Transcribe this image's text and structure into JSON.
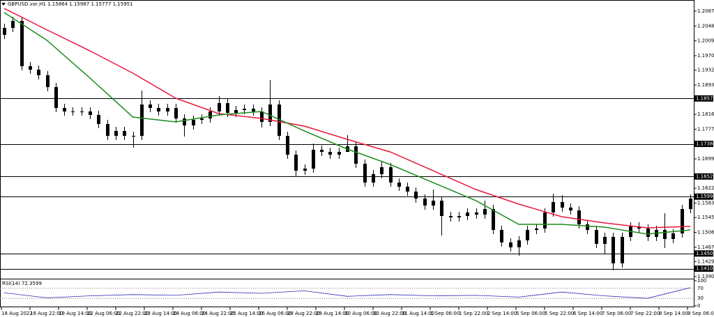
{
  "chart_data": {
    "type": "candlestick",
    "title": "GBPUSD.var,H1 1.15864 1.15987 1.15777 1.15951",
    "ylim": [
      1.13843,
      1.21163
    ],
    "yticks": [
      {
        "value": 1.2087,
        "label": "1.20870"
      },
      {
        "value": 1.2048,
        "label": "1.20480"
      },
      {
        "value": 1.2009,
        "label": "1.20090"
      },
      {
        "value": 1.197,
        "label": "1.19700"
      },
      {
        "value": 1.1932,
        "label": "1.19320"
      },
      {
        "value": 1.1893,
        "label": "1.18930"
      },
      {
        "value": 1.1816,
        "label": "1.18160"
      },
      {
        "value": 1.1777,
        "label": "1.17770"
      },
      {
        "value": 1.1699,
        "label": "1.16990"
      },
      {
        "value": 1.1622,
        "label": "1.16220"
      },
      {
        "value": 1.1583,
        "label": "1.15830"
      },
      {
        "value": 1.1545,
        "label": "1.15450"
      },
      {
        "value": 1.1506,
        "label": "1.15060"
      },
      {
        "value": 1.1467,
        "label": "1.14670"
      },
      {
        "value": 1.1429,
        "label": "1.14290"
      },
      {
        "value": 1.139,
        "label": "1.13900"
      }
    ],
    "categories": [
      "18 Aug 2022",
      "18 Aug 22:00",
      "19 Aug 14:00",
      "22 Aug 06:00",
      "22 Aug 22:00",
      "23 Aug 14:00",
      "24 Aug 06:00",
      "24 Aug 22:00",
      "25 Aug 14:00",
      "26 Aug 06:00",
      "28 Aug 22:00",
      "29 Aug 14:00",
      "30 Aug 06:00",
      "30 Aug 22:00",
      "31 Aug 14:00",
      "1 Sep 06:00",
      "1 Sep 22:00",
      "2 Sep 14:00",
      "5 Sep 06:00",
      "5 Sep 22:00",
      "6 Sep 14:00",
      "7 Sep 06:00",
      "7 Sep 22:00",
      "8 Sep 14:00",
      "9 Sep 06:00"
    ],
    "candles": [
      [
        1.20248,
        1.20541,
        1.20138,
        1.20431
      ],
      [
        1.20431,
        1.20724,
        1.20321,
        1.20614
      ],
      [
        1.20614,
        1.20724,
        1.19315,
        1.19424
      ],
      [
        1.19424,
        1.19534,
        1.19223,
        1.19333
      ],
      [
        1.19333,
        1.19443,
        1.19077,
        1.19187
      ],
      [
        1.19187,
        1.19296,
        1.18766,
        1.18876
      ],
      [
        1.18876,
        1.18985,
        1.18217,
        1.18327
      ],
      [
        1.18327,
        1.18436,
        1.18125,
        1.18235
      ],
      [
        1.18235,
        1.18345,
        1.18125,
        1.18235
      ],
      [
        1.18235,
        1.18345,
        1.18125,
        1.18235
      ],
      [
        1.18235,
        1.18345,
        1.18034,
        1.18144
      ],
      [
        1.18144,
        1.18253,
        1.17796,
        1.17906
      ],
      [
        1.17906,
        1.18015,
        1.17485,
        1.17595
      ],
      [
        1.17595,
        1.17832,
        1.17485,
        1.17723
      ],
      [
        1.17723,
        1.17832,
        1.17485,
        1.17595
      ],
      [
        1.17595,
        1.17704,
        1.17283,
        1.17595
      ],
      [
        1.17595,
        1.18784,
        1.17485,
        1.18418
      ],
      [
        1.18418,
        1.18528,
        1.18217,
        1.18327
      ],
      [
        1.18327,
        1.18436,
        1.18125,
        1.18235
      ],
      [
        1.18235,
        1.18436,
        1.18125,
        1.18327
      ],
      [
        1.18327,
        1.18436,
        1.17942,
        1.18052
      ],
      [
        1.18052,
        1.18162,
        1.17576,
        1.17869
      ],
      [
        1.17869,
        1.18125,
        1.17759,
        1.18015
      ],
      [
        1.18015,
        1.18162,
        1.17906,
        1.18052
      ],
      [
        1.18052,
        1.18345,
        1.17942,
        1.18235
      ],
      [
        1.18235,
        1.18638,
        1.18125,
        1.18455
      ],
      [
        1.18455,
        1.18564,
        1.18089,
        1.18198
      ],
      [
        1.18198,
        1.18381,
        1.18089,
        1.18272
      ],
      [
        1.18272,
        1.18418,
        1.18162,
        1.18308
      ],
      [
        1.18308,
        1.18418,
        1.18125,
        1.18235
      ],
      [
        1.18235,
        1.18345,
        1.17814,
        1.17961
      ],
      [
        1.17961,
        1.19059,
        1.17851,
        1.18418
      ],
      [
        1.18418,
        1.18528,
        1.17485,
        1.17595
      ],
      [
        1.17595,
        1.17704,
        1.16991,
        1.171
      ],
      [
        1.171,
        1.1721,
        1.16533,
        1.1668
      ],
      [
        1.1668,
        1.16844,
        1.1657,
        1.16734
      ],
      [
        1.16734,
        1.17393,
        1.16625,
        1.17229
      ],
      [
        1.17229,
        1.17338,
        1.17064,
        1.17174
      ],
      [
        1.17174,
        1.17283,
        1.16991,
        1.171
      ],
      [
        1.171,
        1.17283,
        1.16991,
        1.17174
      ],
      [
        1.17174,
        1.17613,
        1.1721,
        1.1732
      ],
      [
        1.1732,
        1.1743,
        1.16753,
        1.16863
      ],
      [
        1.16863,
        1.16972,
        1.16259,
        1.16368
      ],
      [
        1.16368,
        1.16698,
        1.16259,
        1.16588
      ],
      [
        1.16588,
        1.16917,
        1.16478,
        1.16771
      ],
      [
        1.16771,
        1.16881,
        1.16259,
        1.16368
      ],
      [
        1.16368,
        1.16478,
        1.16149,
        1.16259
      ],
      [
        1.16259,
        1.16368,
        1.16021,
        1.16131
      ],
      [
        1.16131,
        1.1624,
        1.15838,
        1.15948
      ],
      [
        1.15948,
        1.16057,
        1.15655,
        1.15765
      ],
      [
        1.15765,
        1.16185,
        1.15655,
        1.15893
      ],
      [
        1.15893,
        1.15998,
        1.14978,
        1.1549
      ],
      [
        1.1549,
        1.156,
        1.15344,
        1.15453
      ],
      [
        1.15453,
        1.156,
        1.15344,
        1.1549
      ],
      [
        1.1549,
        1.15691,
        1.1538,
        1.15582
      ],
      [
        1.15582,
        1.15691,
        1.15417,
        1.15527
      ],
      [
        1.15527,
        1.15893,
        1.15417,
        1.15673
      ],
      [
        1.15673,
        1.15783,
        1.15014,
        1.15124
      ],
      [
        1.15124,
        1.15234,
        1.14685,
        1.14795
      ],
      [
        1.14795,
        1.14904,
        1.14557,
        1.14667
      ],
      [
        1.14667,
        1.14959,
        1.14447,
        1.1485
      ],
      [
        1.1485,
        1.15234,
        1.1474,
        1.15124
      ],
      [
        1.15124,
        1.1527,
        1.15014,
        1.15161
      ],
      [
        1.15161,
        1.15691,
        1.15051,
        1.15582
      ],
      [
        1.15582,
        1.16076,
        1.15472,
        1.15856
      ],
      [
        1.15856,
        1.16039,
        1.156,
        1.1571
      ],
      [
        1.1571,
        1.15819,
        1.15527,
        1.15636
      ],
      [
        1.15636,
        1.15746,
        1.15161,
        1.1527
      ],
      [
        1.1527,
        1.1538,
        1.15014,
        1.15124
      ],
      [
        1.15124,
        1.15234,
        1.14648,
        1.14758
      ],
      [
        1.14758,
        1.15051,
        1.14502,
        1.14941
      ],
      [
        1.14941,
        1.15051,
        1.14063,
        1.14246
      ],
      [
        1.14246,
        1.15051,
        1.14136,
        1.14941
      ],
      [
        1.14941,
        1.15325,
        1.14831,
        1.15216
      ],
      [
        1.15216,
        1.15325,
        1.15051,
        1.15161
      ],
      [
        1.15161,
        1.1527,
        1.14831,
        1.14941
      ],
      [
        1.14941,
        1.15234,
        1.14831,
        1.15124
      ],
      [
        1.15124,
        1.15563,
        1.14648,
        1.14886
      ],
      [
        1.14886,
        1.15142,
        1.14776,
        1.15033
      ],
      [
        1.15033,
        1.15783,
        1.14923,
        1.15673
      ],
      [
        1.15673,
        1.16057,
        1.15563,
        1.15948
      ]
    ],
    "candle_color": "#000000",
    "x": [
      0,
      5,
      10,
      15,
      20,
      25,
      30,
      35,
      40,
      45,
      50,
      55,
      60,
      65,
      70,
      75,
      80
    ],
    "series": [
      {
        "color": "#e8173b",
        "values": [
          1.20943,
          1.20376,
          1.19827,
          1.19242,
          1.18583,
          1.1818,
          1.18052,
          1.17851,
          1.17503,
          1.17174,
          1.1668,
          1.16185,
          1.15801,
          1.15472,
          1.15307,
          1.15179,
          1.15216
        ]
      },
      {
        "color": "#1a8c1a",
        "values": [
          1.20834,
          1.20102,
          1.19113,
          1.18089,
          1.17961,
          1.18144,
          1.18235,
          1.17723,
          1.17247,
          1.16844,
          1.16368,
          1.15893,
          1.1527,
          1.1527,
          1.15197,
          1.15014,
          1.15124
        ]
      }
    ],
    "levels": [
      1.18577,
      1.17384,
      1.16528,
      1.15999,
      1.14505,
      1.14106
    ],
    "rsi": {
      "title": "RSI(14) 72.3599",
      "color": "#2b2bb5",
      "ylim": [
        0,
        100
      ],
      "yticks": [
        100,
        70,
        30,
        0
      ],
      "values": [
        52,
        32,
        40,
        45,
        42,
        55,
        50,
        60,
        38,
        45,
        40,
        42,
        35,
        55,
        40,
        30,
        72.3599
      ]
    }
  }
}
